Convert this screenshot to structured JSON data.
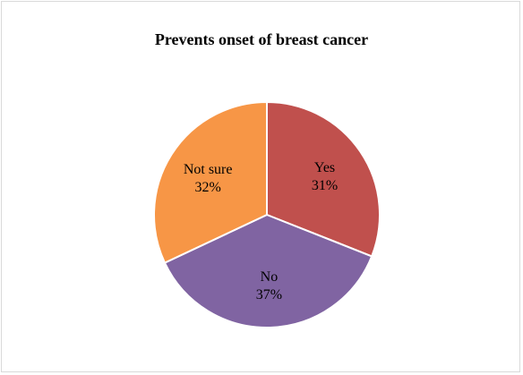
{
  "chart_data": {
    "type": "pie",
    "title": "Prevents onset of breast cancer",
    "categories": [
      "Yes",
      "No",
      "Not sure"
    ],
    "values": [
      31,
      37,
      32
    ],
    "value_labels": [
      "31%",
      "37%",
      "32%"
    ],
    "colors": [
      "#c0504d",
      "#8064a2",
      "#f79646"
    ],
    "start_angle_deg": 0,
    "direction": "clockwise",
    "legend": "none"
  }
}
